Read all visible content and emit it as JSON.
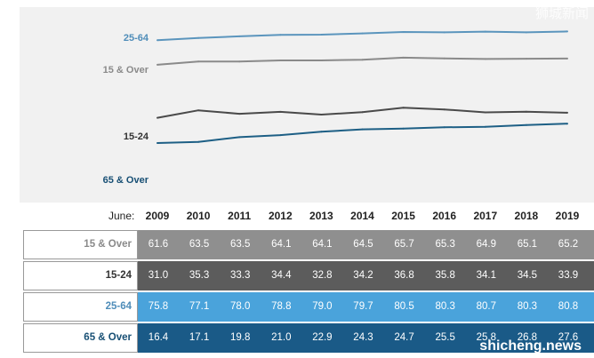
{
  "chart_data": {
    "type": "line",
    "x_label_prefix": "June:",
    "x": [
      "2009",
      "2010",
      "2011",
      "2012",
      "2013",
      "2014",
      "2015",
      "2016",
      "2017",
      "2018",
      "2019"
    ],
    "series": [
      {
        "name": "15 & Over",
        "color": "#8a8a8a",
        "label_color": "#8a8a8a",
        "cell_bg": "#8f8f8f",
        "values": [
          61.6,
          63.5,
          63.5,
          64.1,
          64.1,
          64.5,
          65.7,
          65.3,
          64.9,
          65.1,
          65.2
        ]
      },
      {
        "name": "15-24",
        "color": "#4a4a4a",
        "label_color": "#333333",
        "cell_bg": "#5c5c5c",
        "values": [
          31.0,
          35.3,
          33.3,
          34.4,
          32.8,
          34.2,
          36.8,
          35.8,
          34.1,
          34.5,
          33.9
        ]
      },
      {
        "name": "25-64",
        "color": "#5b95bd",
        "label_color": "#4f8db9",
        "cell_bg": "#4aa3db",
        "values": [
          75.8,
          77.1,
          78.0,
          78.8,
          79.0,
          79.7,
          80.5,
          80.3,
          80.7,
          80.3,
          80.8
        ]
      },
      {
        "name": "65 & Over",
        "color": "#1d5f85",
        "label_color": "#174f74",
        "cell_bg": "#1a5a87",
        "values": [
          16.4,
          17.1,
          19.8,
          21.0,
          22.9,
          24.3,
          24.7,
          25.5,
          25.8,
          26.8,
          27.6
        ]
      }
    ]
  },
  "watermarks": {
    "top_right": "狮城新闻",
    "bottom_left": "shicheng.news",
    "bottom_right": "shicheng.news"
  }
}
